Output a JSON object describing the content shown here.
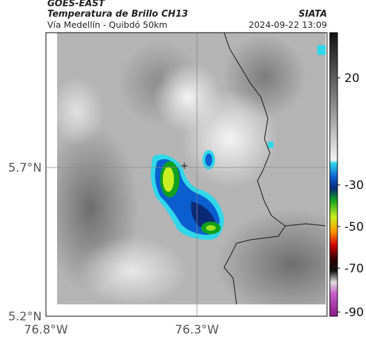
{
  "header": {
    "satellite": "GOES-EAST",
    "product": "Temperatura de Brillo CH13",
    "region": "Vía Medellín - Quibdó 50km",
    "source": "SIATA",
    "datetime": "2024-09-22 13:09"
  },
  "axes": {
    "latitude_labels": [
      "5.7°N",
      "5.2°N"
    ],
    "longitude_labels": [
      "76.8°W",
      "76.3°W"
    ]
  },
  "colorbar": {
    "labels": [
      "20",
      "-30",
      "-50",
      "-70",
      "-90"
    ]
  }
}
